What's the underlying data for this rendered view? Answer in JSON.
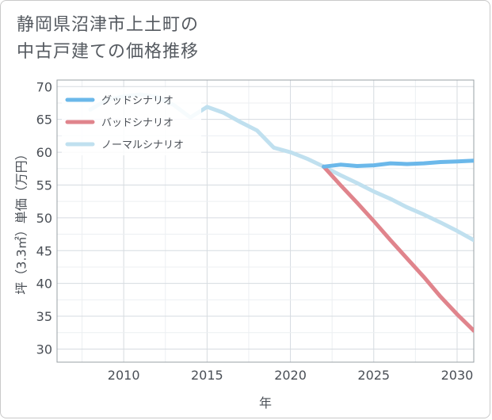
{
  "chart_data": {
    "type": "line",
    "title_lines": [
      "静岡県沼津市上土町の",
      "中古戸建ての価格推移"
    ],
    "xlabel": "年",
    "ylabel": "坪（3.3㎡）単価（万円）",
    "xlim": [
      2006,
      2031
    ],
    "ylim": [
      28,
      71
    ],
    "x_ticks": [
      2010,
      2015,
      2020,
      2025,
      2030
    ],
    "y_ticks": [
      30,
      35,
      40,
      45,
      50,
      55,
      60,
      65,
      70
    ],
    "grid": true,
    "legend_position": "top-left",
    "series": [
      {
        "name": "グッドシナリオ",
        "color": "#6bb8ea",
        "x": [
          2022,
          2023,
          2024,
          2025,
          2026,
          2027,
          2028,
          2029,
          2030,
          2031
        ],
        "y": [
          57.8,
          58.1,
          57.9,
          58.0,
          58.3,
          58.2,
          58.3,
          58.5,
          58.6,
          58.7
        ]
      },
      {
        "name": "バッドシナリオ",
        "color": "#e0848c",
        "x": [
          2022,
          2023,
          2024,
          2025,
          2026,
          2027,
          2028,
          2029,
          2030,
          2031
        ],
        "y": [
          57.8,
          55.0,
          52.3,
          49.5,
          46.6,
          43.8,
          41.0,
          38.0,
          35.3,
          32.8
        ]
      },
      {
        "name": "ノーマルシナリオ",
        "color": "#c0e0ef",
        "x": [
          2008,
          2009,
          2010,
          2011,
          2012,
          2013,
          2014,
          2015,
          2016,
          2017,
          2018,
          2019,
          2020,
          2021,
          2022,
          2023,
          2024,
          2025,
          2026,
          2027,
          2028,
          2029,
          2030,
          2031
        ],
        "y": [
          66.5,
          68.0,
          68.5,
          68.8,
          68.4,
          67.2,
          65.3,
          66.9,
          66.0,
          64.6,
          63.3,
          60.7,
          60.0,
          59.0,
          57.8,
          56.5,
          55.3,
          54.0,
          52.9,
          51.6,
          50.5,
          49.3,
          48.0,
          46.6
        ]
      }
    ]
  }
}
